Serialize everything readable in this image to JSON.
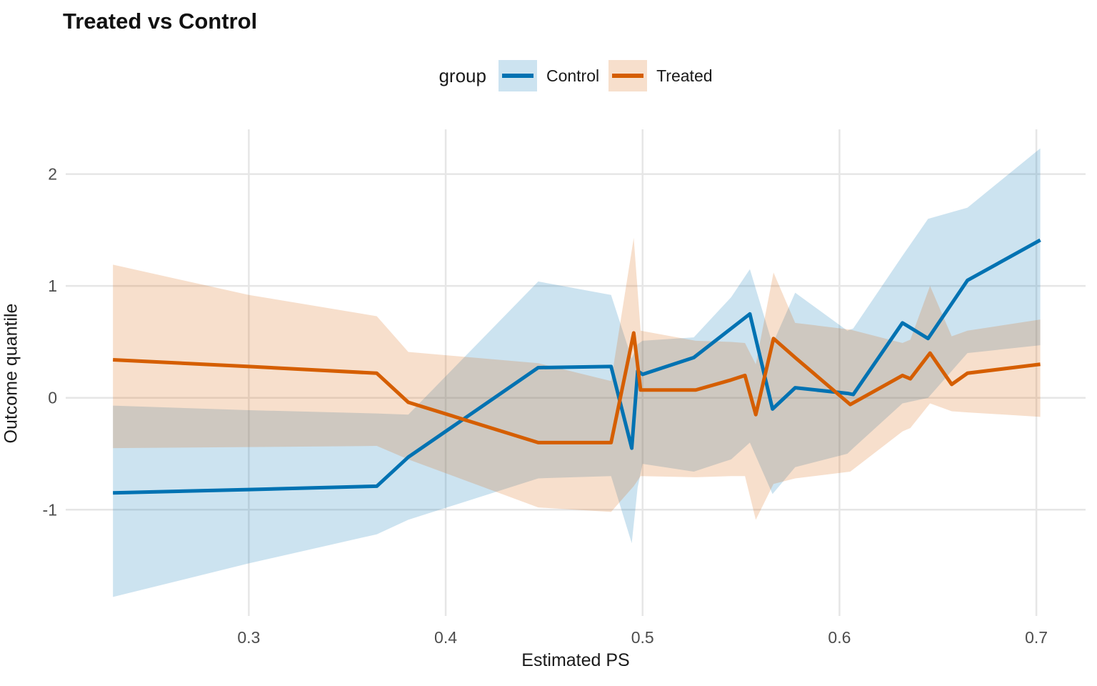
{
  "title": "Treated vs Control",
  "legend": {
    "title": "group",
    "items": [
      {
        "label": "Control",
        "color": "#0072B2",
        "fill": "#CCE3F0"
      },
      {
        "label": "Treated",
        "color": "#D55E00",
        "fill": "#F7DFCC"
      }
    ]
  },
  "axes": {
    "x_label": "Estimated PS",
    "y_label": "Outcome quantile",
    "x_tick_labels": [
      "0.3",
      "0.4",
      "0.5",
      "0.6",
      "0.7"
    ],
    "y_tick_labels": [
      "-1",
      "0",
      "1",
      "2"
    ]
  },
  "chart_data": {
    "type": "line",
    "title": "Treated vs Control",
    "xlabel": "Estimated PS",
    "ylabel": "Outcome quantile",
    "legend_title": "group",
    "legend_position": "top",
    "grid": "major-only",
    "x_ticks": [
      0.3,
      0.4,
      0.5,
      0.6,
      0.7
    ],
    "y_ticks": [
      -1,
      0,
      1,
      2
    ],
    "xlim": [
      0.207,
      0.725
    ],
    "ylim": [
      -1.95,
      2.4
    ],
    "ribbon_alpha": 0.2,
    "series": [
      {
        "name": "Control",
        "color": "#0072B2",
        "x": [
          0.231,
          0.3,
          0.365,
          0.381,
          0.447,
          0.484,
          0.4945,
          0.4975,
          0.5,
          0.526,
          0.545,
          0.5545,
          0.566,
          0.5775,
          0.604,
          0.607,
          0.632,
          0.645,
          0.665,
          0.702
        ],
        "y": [
          -0.85,
          -0.82,
          -0.79,
          -0.53,
          0.27,
          0.28,
          -0.45,
          0.24,
          0.21,
          0.36,
          0.62,
          0.75,
          -0.1,
          0.09,
          0.04,
          0.03,
          0.67,
          0.53,
          1.05,
          1.41
        ],
        "lower": [
          -1.78,
          -1.48,
          -1.22,
          -1.09,
          -0.72,
          -0.7,
          -1.3,
          -0.8,
          -0.59,
          -0.66,
          -0.55,
          -0.4,
          -0.86,
          -0.62,
          -0.5,
          -0.45,
          -0.05,
          0.0,
          0.4,
          0.47
        ],
        "upper": [
          -0.07,
          -0.11,
          -0.14,
          -0.15,
          1.04,
          0.92,
          0.35,
          0.48,
          0.51,
          0.54,
          0.9,
          1.15,
          0.48,
          0.94,
          0.6,
          0.62,
          1.27,
          1.6,
          1.7,
          2.23
        ]
      },
      {
        "name": "Treated",
        "color": "#D55E00",
        "x": [
          0.231,
          0.3,
          0.365,
          0.381,
          0.447,
          0.484,
          0.4955,
          0.499,
          0.527,
          0.545,
          0.552,
          0.5575,
          0.5665,
          0.5775,
          0.6055,
          0.632,
          0.636,
          0.646,
          0.657,
          0.665,
          0.702
        ],
        "y": [
          0.34,
          0.28,
          0.22,
          -0.04,
          -0.4,
          -0.4,
          0.58,
          0.07,
          0.07,
          0.16,
          0.2,
          -0.15,
          0.53,
          0.36,
          -0.06,
          0.2,
          0.17,
          0.4,
          0.12,
          0.22,
          0.3
        ],
        "lower": [
          -0.45,
          -0.44,
          -0.43,
          -0.55,
          -0.98,
          -1.02,
          -0.79,
          -0.7,
          -0.71,
          -0.7,
          -0.7,
          -1.09,
          -0.77,
          -0.72,
          -0.66,
          -0.3,
          -0.27,
          -0.05,
          -0.12,
          -0.13,
          -0.17
        ],
        "upper": [
          1.19,
          0.92,
          0.73,
          0.41,
          0.31,
          0.15,
          1.43,
          0.6,
          0.51,
          0.5,
          0.49,
          0.3,
          1.12,
          0.67,
          0.61,
          0.49,
          0.52,
          1.0,
          0.55,
          0.6,
          0.7
        ]
      }
    ]
  }
}
